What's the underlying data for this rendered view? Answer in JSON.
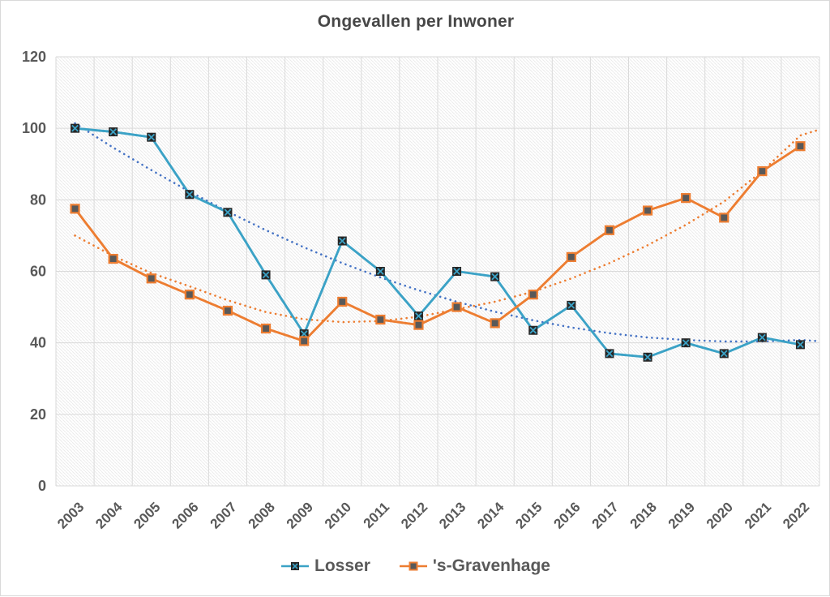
{
  "title": "Ongevallen per Inwoner",
  "legend": {
    "position": "bottom",
    "items": [
      "Losser",
      "'s-Gravenhage"
    ]
  },
  "colors": {
    "losser_line": "#3BA2C6",
    "gravenhage_line": "#ED7D31",
    "losser_trend": "#4472C4",
    "gravenhage_trend": "#ED7D31",
    "losser_marker_fill": "#262626",
    "gravenhage_marker_fill": "#595959",
    "gridline": "#DADADA",
    "hatch": "#EBEBEB",
    "axis_text": "#595959",
    "title_text": "#474747",
    "frame_border": "#D9D9D9"
  },
  "chart_data": {
    "type": "line",
    "title": "Ongevallen per Inwoner",
    "xlabel": "",
    "ylabel": "",
    "ylim": [
      0,
      120
    ],
    "yticks": [
      0,
      20,
      40,
      60,
      80,
      100,
      120
    ],
    "grid": true,
    "background": "diagonal-hatch",
    "legend_position": "bottom",
    "categories": [
      "2003",
      "2004",
      "2005",
      "2006",
      "2007",
      "2008",
      "2009",
      "2010",
      "2011",
      "2012",
      "2013",
      "2014",
      "2015",
      "2016",
      "2017",
      "2018",
      "2019",
      "2020",
      "2021",
      "2022"
    ],
    "series": [
      {
        "name": "Losser",
        "kind": "line",
        "color": "#3BA2C6",
        "marker": "x-square",
        "marker_fill": "#262626",
        "values": [
          100,
          99,
          97.5,
          81.5,
          76.5,
          59,
          42.5,
          68.5,
          60,
          47.5,
          60,
          58.5,
          43.5,
          50.5,
          37,
          36,
          40,
          37,
          41.5,
          39.5
        ]
      },
      {
        "name": "'s-Gravenhage",
        "kind": "line",
        "color": "#ED7D31",
        "marker": "square",
        "marker_fill": "#595959",
        "values": [
          77.5,
          63.5,
          58,
          53.5,
          49,
          44,
          40.5,
          51.5,
          46.5,
          45,
          50,
          45.5,
          53.5,
          64,
          71.5,
          77,
          80.5,
          75,
          88,
          95
        ]
      },
      {
        "name": "Losser trendline",
        "kind": "trendline",
        "style": "dotted",
        "color": "#4472C4",
        "values": [
          101.4,
          94.6,
          88.3,
          82.3,
          76.7,
          71.5,
          66.7,
          62.3,
          58.3,
          54.7,
          51.5,
          48.7,
          46.3,
          44.3,
          42.7,
          41.5,
          40.8,
          40.4,
          40.4,
          40.8
        ],
        "edge_value": 40.5
      },
      {
        "name": "'s-Gravenhage trendline",
        "kind": "trendline",
        "style": "dotted",
        "color": "#ED7D31",
        "values": [
          70,
          64.3,
          59.5,
          55.8,
          51.9,
          48.6,
          46.6,
          45.8,
          46.1,
          47.3,
          49.4,
          51.5,
          54.3,
          58,
          62.3,
          67.3,
          73,
          79.5,
          88,
          98
        ],
        "edge_value": 99.5
      }
    ]
  }
}
